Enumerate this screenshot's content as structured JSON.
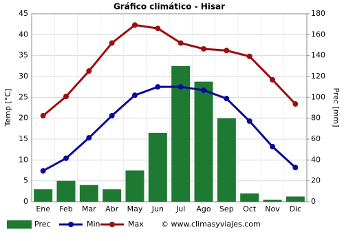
{
  "chart_data": {
    "type": "bar-line",
    "title": "Gráfico climático - Hisar",
    "y_label": "Temp [°C]",
    "y2_label": "Prec [mm]",
    "categories": [
      "Ene",
      "Feb",
      "Mar",
      "Abr",
      "May",
      "Jun",
      "Jul",
      "Ago",
      "Sep",
      "Oct",
      "Nov",
      "Dic"
    ],
    "series": [
      {
        "name": "Prec",
        "type": "bar",
        "axis": "y2",
        "color": "#1e7a32",
        "values": [
          12,
          20,
          16,
          12,
          30,
          66,
          130,
          115,
          80,
          8,
          2,
          5
        ]
      },
      {
        "name": "Min",
        "type": "line",
        "color": "#0a0a9a",
        "values": [
          7.4,
          10.4,
          15.3,
          20.6,
          25.5,
          27.5,
          27.5,
          26.7,
          24.7,
          19.3,
          13.2,
          8.2
        ]
      },
      {
        "name": "Max",
        "type": "line",
        "color": "#9a0f10",
        "values": [
          20.6,
          25.2,
          31.3,
          38,
          42.3,
          41.5,
          38,
          36.6,
          36.2,
          34.8,
          29.2,
          23.4
        ]
      }
    ],
    "ylim": [
      0,
      45
    ],
    "yticks": [
      0,
      5,
      10,
      15,
      20,
      25,
      30,
      35,
      40,
      45
    ],
    "y2lim": [
      0,
      180
    ],
    "y2ticks": [
      0,
      20,
      40,
      60,
      80,
      100,
      120,
      140,
      160,
      180
    ],
    "grid": true,
    "legend": "bottom",
    "credit": "© www.climasyviajes.com"
  }
}
